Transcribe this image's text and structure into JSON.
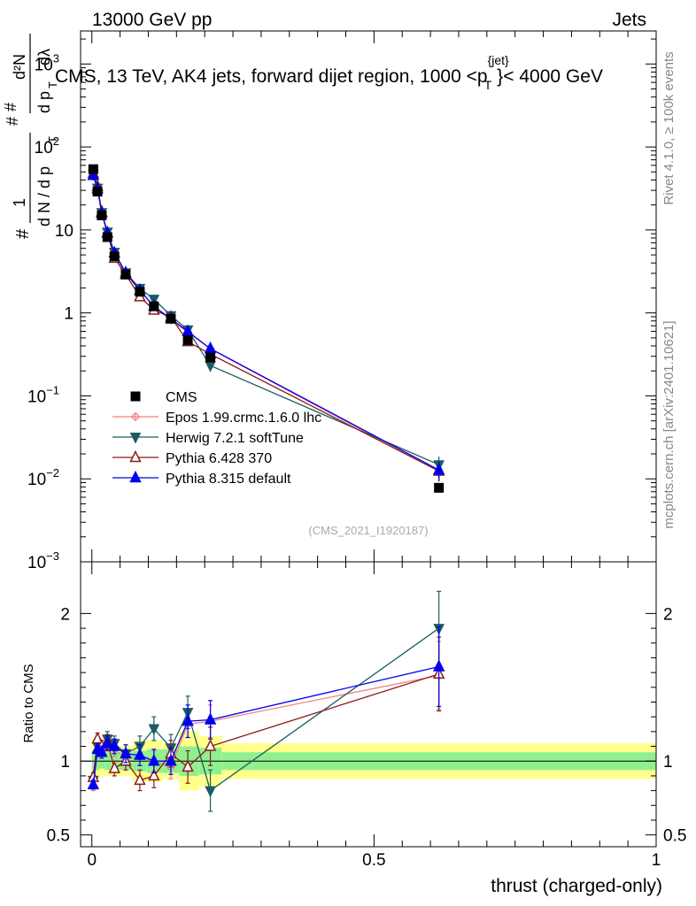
{
  "header": {
    "left": "13000 GeV pp",
    "right": "Jets",
    "title_prefix": "CMS, 13 TeV, AK4 jets, forward dijet region, 1000 <p",
    "title_sup": "{jet}",
    "title_sub": "T",
    "title_suffix": "}< 4000 GeV"
  },
  "side_labels": {
    "rivet": "Rivet 4.1.0, ≥ 100k events",
    "mcplots": "mcplots.cern.ch [arXiv:2401.10621]"
  },
  "watermark": "(CMS_2021_I1920187)",
  "axes": {
    "xlabel": "thrust (charged-only)",
    "ratio_ylabel": "Ratio to CMS",
    "ylabel_parts": {
      "hash_top": "#",
      "frac_num": "1",
      "frac_den": "d N / d p",
      "frac_den_sub": "T",
      "hash_mid": "#",
      "deriv_num": "d²N",
      "hash_deriv": "#",
      "deriv_den": "d p",
      "deriv_den_sub": "T",
      "deriv_den_tail": "dλ"
    },
    "main_yticks": [
      {
        "v": 1000,
        "base": "10",
        "exp": "3"
      },
      {
        "v": 100,
        "base": "10",
        "exp": "2"
      },
      {
        "v": 10,
        "base": "10",
        "exp": ""
      },
      {
        "v": 1,
        "base": "1",
        "exp": ""
      },
      {
        "v": 0.1,
        "base": "10",
        "exp": "−1"
      },
      {
        "v": 0.01,
        "base": "10",
        "exp": "−2"
      },
      {
        "v": 0.001,
        "base": "10",
        "exp": "−3"
      }
    ],
    "ratio_yticks": [
      {
        "v": 0.5,
        "label": "0.5"
      },
      {
        "v": 1,
        "label": "1"
      },
      {
        "v": 2,
        "label": "2"
      }
    ],
    "xticks": [
      {
        "v": 0,
        "label": "0"
      },
      {
        "v": 0.5,
        "label": "0.5"
      },
      {
        "v": 1,
        "label": "1"
      }
    ]
  },
  "chart_data": {
    "type": "line",
    "title": "CMS, 13 TeV, AK4 jets, forward dijet region, 1000 <pT{jet}< 4000 GeV",
    "xlabel": "thrust (charged-only)",
    "xlim": [
      -0.02,
      1.0
    ],
    "ylim": [
      0.001,
      2500
    ],
    "yscale": "log",
    "ratio_ylim": [
      0.42,
      2.35
    ],
    "x": [
      0.0025,
      0.01,
      0.0175,
      0.0275,
      0.04,
      0.06,
      0.085,
      0.11,
      0.14,
      0.17,
      0.21,
      0.615
    ],
    "data": {
      "name": "CMS",
      "values": [
        54,
        29,
        15,
        8.2,
        4.8,
        2.9,
        1.8,
        1.2,
        0.85,
        0.47,
        0.29,
        0.0078
      ],
      "band_inner": [
        0.07,
        0.06,
        0.05,
        0.06,
        0.06,
        0.06,
        0.07,
        0.08,
        0.08,
        0.1,
        0.09,
        0.06
      ],
      "band_outer": [
        0.15,
        0.12,
        0.1,
        0.1,
        0.1,
        0.1,
        0.14,
        0.14,
        0.12,
        0.2,
        0.17,
        0.12
      ]
    },
    "series": [
      {
        "name": "Epos 1.99.crmc.1.6.0 lhc",
        "color": "#f08080",
        "marker": "open-plus",
        "ratio": [
          0.83,
          1.07,
          1.07,
          1.11,
          1.08,
          1.02,
          1.03,
          1.0,
          0.96,
          1.25,
          1.27,
          1.58
        ],
        "ratio_err": [
          0.03,
          0.04,
          0.04,
          0.04,
          0.05,
          0.05,
          0.06,
          0.07,
          0.08,
          0.09,
          0.11,
          0.23
        ]
      },
      {
        "name": "Herwig 7.2.1 softTune",
        "color": "#1b5c63",
        "marker": "down-triangle",
        "ratio": [
          0.87,
          1.1,
          1.08,
          1.15,
          1.12,
          1.05,
          1.1,
          1.22,
          1.09,
          1.33,
          0.8,
          1.9
        ],
        "ratio_err": [
          0.03,
          0.04,
          0.04,
          0.05,
          0.05,
          0.06,
          0.07,
          0.08,
          0.09,
          0.11,
          0.14,
          0.25
        ]
      },
      {
        "name": "Pythia 6.428 370",
        "color": "#8b1a1a",
        "marker": "open-up-triangle",
        "ratio": [
          0.89,
          1.15,
          1.1,
          1.13,
          0.95,
          1.0,
          0.87,
          0.9,
          1.05,
          0.96,
          1.1,
          1.59
        ],
        "ratio_err": [
          0.03,
          0.04,
          0.04,
          0.05,
          0.05,
          0.06,
          0.07,
          0.08,
          0.09,
          0.11,
          0.13,
          0.25
        ]
      },
      {
        "name": "Pythia 8.315 default",
        "color": "#0000ee",
        "marker": "up-triangle",
        "ratio": [
          0.84,
          1.08,
          1.06,
          1.12,
          1.1,
          1.05,
          1.04,
          1.0,
          1.0,
          1.27,
          1.28,
          1.64
        ],
        "ratio_err": [
          0.03,
          0.04,
          0.04,
          0.05,
          0.05,
          0.06,
          0.07,
          0.08,
          0.09,
          0.11,
          0.13,
          0.27
        ]
      }
    ]
  }
}
